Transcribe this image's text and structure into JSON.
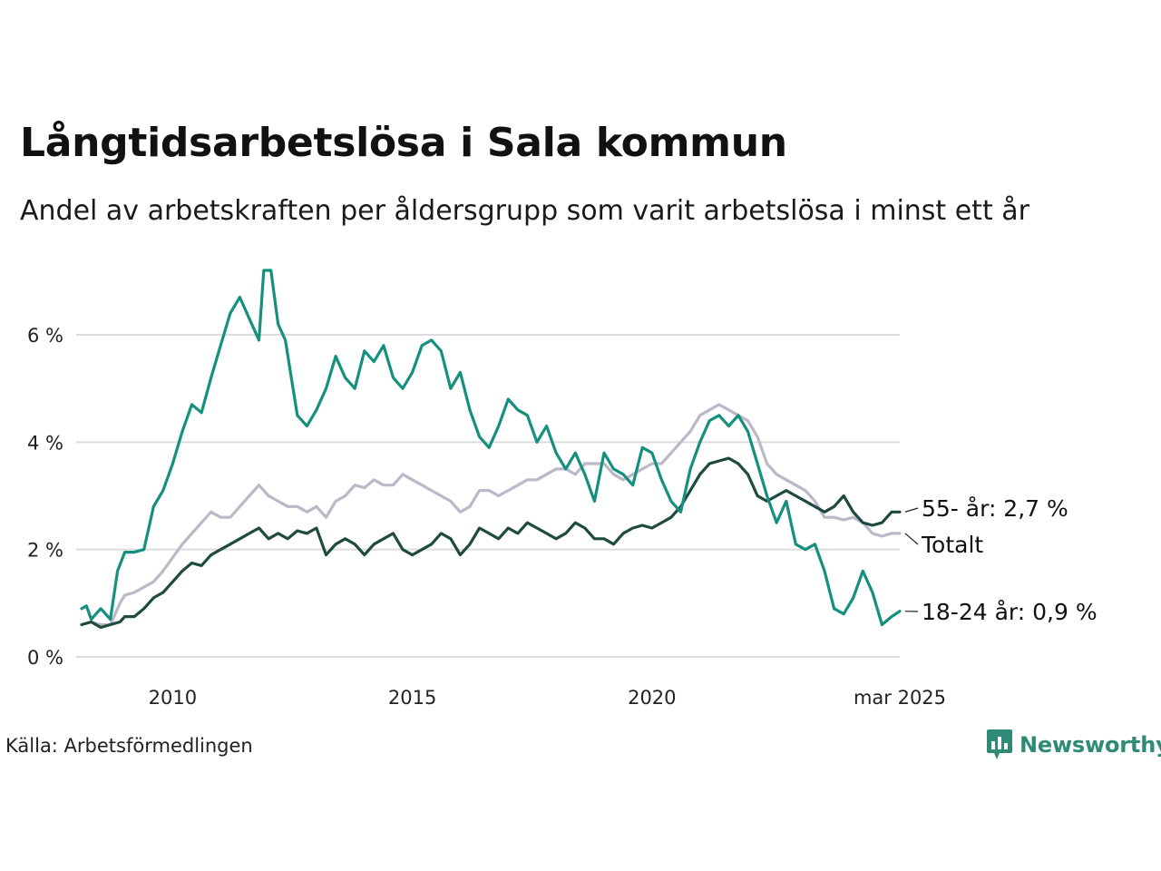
{
  "title": "Långtidsarbetslösa i Sala kommun",
  "subtitle": "Andel av arbetskraften per åldersgrupp som varit arbetslösa i minst ett år",
  "source": "Källa: Arbetsförmedlingen",
  "brand": {
    "name": "Newsworthy",
    "icon": "newsworthy-logo-icon"
  },
  "chart_data": {
    "type": "line",
    "xlim": [
      2008.1,
      2025.17
    ],
    "ylim": [
      0,
      7.2
    ],
    "yticks": [
      {
        "value": 0,
        "label": "0 %"
      },
      {
        "value": 2,
        "label": "2 %"
      },
      {
        "value": 4,
        "label": "4 %"
      },
      {
        "value": 6,
        "label": "6 %"
      }
    ],
    "xticks": [
      {
        "value": 2010,
        "label": "2010"
      },
      {
        "value": 2015,
        "label": "2015"
      },
      {
        "value": 2020,
        "label": "2020"
      },
      {
        "value": 2025.17,
        "label": "mar 2025"
      }
    ],
    "grid": true,
    "series": [
      {
        "name": "Totalt",
        "end_label": "Totalt",
        "color": "#bdb8c8",
        "points": [
          [
            2008.1,
            0.6
          ],
          [
            2008.3,
            0.65
          ],
          [
            2008.5,
            0.6
          ],
          [
            2008.7,
            0.6
          ],
          [
            2008.9,
            1.0
          ],
          [
            2009.0,
            1.15
          ],
          [
            2009.2,
            1.2
          ],
          [
            2009.4,
            1.3
          ],
          [
            2009.6,
            1.4
          ],
          [
            2009.8,
            1.6
          ],
          [
            2010.0,
            1.85
          ],
          [
            2010.2,
            2.1
          ],
          [
            2010.4,
            2.3
          ],
          [
            2010.6,
            2.5
          ],
          [
            2010.8,
            2.7
          ],
          [
            2011.0,
            2.6
          ],
          [
            2011.2,
            2.6
          ],
          [
            2011.4,
            2.8
          ],
          [
            2011.6,
            3.0
          ],
          [
            2011.8,
            3.2
          ],
          [
            2012.0,
            3.0
          ],
          [
            2012.2,
            2.9
          ],
          [
            2012.4,
            2.8
          ],
          [
            2012.6,
            2.8
          ],
          [
            2012.8,
            2.7
          ],
          [
            2013.0,
            2.8
          ],
          [
            2013.2,
            2.6
          ],
          [
            2013.4,
            2.9
          ],
          [
            2013.6,
            3.0
          ],
          [
            2013.8,
            3.2
          ],
          [
            2014.0,
            3.15
          ],
          [
            2014.2,
            3.3
          ],
          [
            2014.4,
            3.2
          ],
          [
            2014.6,
            3.2
          ],
          [
            2014.8,
            3.4
          ],
          [
            2015.0,
            3.3
          ],
          [
            2015.2,
            3.2
          ],
          [
            2015.4,
            3.1
          ],
          [
            2015.6,
            3.0
          ],
          [
            2015.8,
            2.9
          ],
          [
            2016.0,
            2.7
          ],
          [
            2016.2,
            2.8
          ],
          [
            2016.4,
            3.1
          ],
          [
            2016.6,
            3.1
          ],
          [
            2016.8,
            3.0
          ],
          [
            2017.0,
            3.1
          ],
          [
            2017.2,
            3.2
          ],
          [
            2017.4,
            3.3
          ],
          [
            2017.6,
            3.3
          ],
          [
            2017.8,
            3.4
          ],
          [
            2018.0,
            3.5
          ],
          [
            2018.2,
            3.5
          ],
          [
            2018.4,
            3.4
          ],
          [
            2018.6,
            3.6
          ],
          [
            2018.8,
            3.6
          ],
          [
            2019.0,
            3.6
          ],
          [
            2019.2,
            3.4
          ],
          [
            2019.4,
            3.3
          ],
          [
            2019.6,
            3.4
          ],
          [
            2019.8,
            3.5
          ],
          [
            2020.0,
            3.6
          ],
          [
            2020.2,
            3.6
          ],
          [
            2020.4,
            3.8
          ],
          [
            2020.6,
            4.0
          ],
          [
            2020.8,
            4.2
          ],
          [
            2021.0,
            4.5
          ],
          [
            2021.2,
            4.6
          ],
          [
            2021.4,
            4.7
          ],
          [
            2021.6,
            4.6
          ],
          [
            2021.8,
            4.5
          ],
          [
            2022.0,
            4.4
          ],
          [
            2022.2,
            4.1
          ],
          [
            2022.4,
            3.6
          ],
          [
            2022.6,
            3.4
          ],
          [
            2022.8,
            3.3
          ],
          [
            2023.0,
            3.2
          ],
          [
            2023.2,
            3.1
          ],
          [
            2023.4,
            2.9
          ],
          [
            2023.6,
            2.6
          ],
          [
            2023.8,
            2.6
          ],
          [
            2024.0,
            2.55
          ],
          [
            2024.2,
            2.6
          ],
          [
            2024.4,
            2.5
          ],
          [
            2024.6,
            2.3
          ],
          [
            2024.8,
            2.25
          ],
          [
            2025.0,
            2.3
          ],
          [
            2025.17,
            2.3
          ]
        ]
      },
      {
        "name": "55- år",
        "end_label": "55- år: 2,7 %",
        "color": "#1e4a40",
        "points": [
          [
            2008.1,
            0.6
          ],
          [
            2008.3,
            0.65
          ],
          [
            2008.5,
            0.55
          ],
          [
            2008.7,
            0.6
          ],
          [
            2008.9,
            0.65
          ],
          [
            2009.0,
            0.75
          ],
          [
            2009.2,
            0.75
          ],
          [
            2009.4,
            0.9
          ],
          [
            2009.6,
            1.1
          ],
          [
            2009.8,
            1.2
          ],
          [
            2010.0,
            1.4
          ],
          [
            2010.2,
            1.6
          ],
          [
            2010.4,
            1.75
          ],
          [
            2010.6,
            1.7
          ],
          [
            2010.8,
            1.9
          ],
          [
            2011.0,
            2.0
          ],
          [
            2011.2,
            2.1
          ],
          [
            2011.4,
            2.2
          ],
          [
            2011.6,
            2.3
          ],
          [
            2011.8,
            2.4
          ],
          [
            2012.0,
            2.2
          ],
          [
            2012.2,
            2.3
          ],
          [
            2012.4,
            2.2
          ],
          [
            2012.6,
            2.35
          ],
          [
            2012.8,
            2.3
          ],
          [
            2013.0,
            2.4
          ],
          [
            2013.2,
            1.9
          ],
          [
            2013.4,
            2.1
          ],
          [
            2013.6,
            2.2
          ],
          [
            2013.8,
            2.1
          ],
          [
            2014.0,
            1.9
          ],
          [
            2014.2,
            2.1
          ],
          [
            2014.4,
            2.2
          ],
          [
            2014.6,
            2.3
          ],
          [
            2014.8,
            2.0
          ],
          [
            2015.0,
            1.9
          ],
          [
            2015.2,
            2.0
          ],
          [
            2015.4,
            2.1
          ],
          [
            2015.6,
            2.3
          ],
          [
            2015.8,
            2.2
          ],
          [
            2016.0,
            1.9
          ],
          [
            2016.2,
            2.1
          ],
          [
            2016.4,
            2.4
          ],
          [
            2016.6,
            2.3
          ],
          [
            2016.8,
            2.2
          ],
          [
            2017.0,
            2.4
          ],
          [
            2017.2,
            2.3
          ],
          [
            2017.4,
            2.5
          ],
          [
            2017.6,
            2.4
          ],
          [
            2017.8,
            2.3
          ],
          [
            2018.0,
            2.2
          ],
          [
            2018.2,
            2.3
          ],
          [
            2018.4,
            2.5
          ],
          [
            2018.6,
            2.4
          ],
          [
            2018.8,
            2.2
          ],
          [
            2019.0,
            2.2
          ],
          [
            2019.2,
            2.1
          ],
          [
            2019.4,
            2.3
          ],
          [
            2019.6,
            2.4
          ],
          [
            2019.8,
            2.45
          ],
          [
            2020.0,
            2.4
          ],
          [
            2020.2,
            2.5
          ],
          [
            2020.4,
            2.6
          ],
          [
            2020.6,
            2.8
          ],
          [
            2020.8,
            3.1
          ],
          [
            2021.0,
            3.4
          ],
          [
            2021.2,
            3.6
          ],
          [
            2021.4,
            3.65
          ],
          [
            2021.6,
            3.7
          ],
          [
            2021.8,
            3.6
          ],
          [
            2022.0,
            3.4
          ],
          [
            2022.2,
            3.0
          ],
          [
            2022.4,
            2.9
          ],
          [
            2022.6,
            3.0
          ],
          [
            2022.8,
            3.1
          ],
          [
            2023.0,
            3.0
          ],
          [
            2023.2,
            2.9
          ],
          [
            2023.4,
            2.8
          ],
          [
            2023.6,
            2.7
          ],
          [
            2023.8,
            2.8
          ],
          [
            2024.0,
            3.0
          ],
          [
            2024.2,
            2.7
          ],
          [
            2024.4,
            2.5
          ],
          [
            2024.6,
            2.45
          ],
          [
            2024.8,
            2.5
          ],
          [
            2025.0,
            2.7
          ],
          [
            2025.17,
            2.7
          ]
        ]
      },
      {
        "name": "18-24 år",
        "end_label": "18-24 år: 0,9 %",
        "color": "#16907e",
        "points": [
          [
            2008.1,
            0.9
          ],
          [
            2008.2,
            0.95
          ],
          [
            2008.3,
            0.7
          ],
          [
            2008.5,
            0.9
          ],
          [
            2008.7,
            0.7
          ],
          [
            2008.85,
            1.6
          ],
          [
            2009.0,
            1.95
          ],
          [
            2009.2,
            1.95
          ],
          [
            2009.4,
            2.0
          ],
          [
            2009.6,
            2.8
          ],
          [
            2009.8,
            3.1
          ],
          [
            2010.0,
            3.6
          ],
          [
            2010.2,
            4.2
          ],
          [
            2010.4,
            4.7
          ],
          [
            2010.6,
            4.55
          ],
          [
            2010.8,
            5.2
          ],
          [
            2011.0,
            5.8
          ],
          [
            2011.2,
            6.4
          ],
          [
            2011.4,
            6.7
          ],
          [
            2011.6,
            6.3
          ],
          [
            2011.8,
            5.9
          ],
          [
            2011.9,
            7.2
          ],
          [
            2012.05,
            7.2
          ],
          [
            2012.2,
            6.2
          ],
          [
            2012.35,
            5.9
          ],
          [
            2012.6,
            4.5
          ],
          [
            2012.8,
            4.3
          ],
          [
            2013.0,
            4.6
          ],
          [
            2013.2,
            5.0
          ],
          [
            2013.4,
            5.6
          ],
          [
            2013.6,
            5.2
          ],
          [
            2013.8,
            5.0
          ],
          [
            2014.0,
            5.7
          ],
          [
            2014.2,
            5.5
          ],
          [
            2014.4,
            5.8
          ],
          [
            2014.6,
            5.2
          ],
          [
            2014.8,
            5.0
          ],
          [
            2015.0,
            5.3
          ],
          [
            2015.2,
            5.8
          ],
          [
            2015.4,
            5.9
          ],
          [
            2015.6,
            5.7
          ],
          [
            2015.8,
            5.0
          ],
          [
            2016.0,
            5.3
          ],
          [
            2016.2,
            4.6
          ],
          [
            2016.4,
            4.1
          ],
          [
            2016.6,
            3.9
          ],
          [
            2016.8,
            4.3
          ],
          [
            2017.0,
            4.8
          ],
          [
            2017.2,
            4.6
          ],
          [
            2017.4,
            4.5
          ],
          [
            2017.6,
            4.0
          ],
          [
            2017.8,
            4.3
          ],
          [
            2018.0,
            3.8
          ],
          [
            2018.2,
            3.5
          ],
          [
            2018.4,
            3.8
          ],
          [
            2018.6,
            3.4
          ],
          [
            2018.8,
            2.9
          ],
          [
            2019.0,
            3.8
          ],
          [
            2019.2,
            3.5
          ],
          [
            2019.4,
            3.4
          ],
          [
            2019.6,
            3.2
          ],
          [
            2019.8,
            3.9
          ],
          [
            2020.0,
            3.8
          ],
          [
            2020.2,
            3.3
          ],
          [
            2020.4,
            2.9
          ],
          [
            2020.6,
            2.7
          ],
          [
            2020.8,
            3.5
          ],
          [
            2021.0,
            4.0
          ],
          [
            2021.2,
            4.4
          ],
          [
            2021.4,
            4.5
          ],
          [
            2021.6,
            4.3
          ],
          [
            2021.8,
            4.5
          ],
          [
            2022.0,
            4.2
          ],
          [
            2022.2,
            3.6
          ],
          [
            2022.4,
            3.0
          ],
          [
            2022.6,
            2.5
          ],
          [
            2022.8,
            2.9
          ],
          [
            2023.0,
            2.1
          ],
          [
            2023.2,
            2.0
          ],
          [
            2023.4,
            2.1
          ],
          [
            2023.6,
            1.6
          ],
          [
            2023.8,
            0.9
          ],
          [
            2024.0,
            0.8
          ],
          [
            2024.2,
            1.1
          ],
          [
            2024.4,
            1.6
          ],
          [
            2024.6,
            1.2
          ],
          [
            2024.8,
            0.6
          ],
          [
            2025.0,
            0.75
          ],
          [
            2025.17,
            0.85
          ]
        ]
      }
    ]
  }
}
